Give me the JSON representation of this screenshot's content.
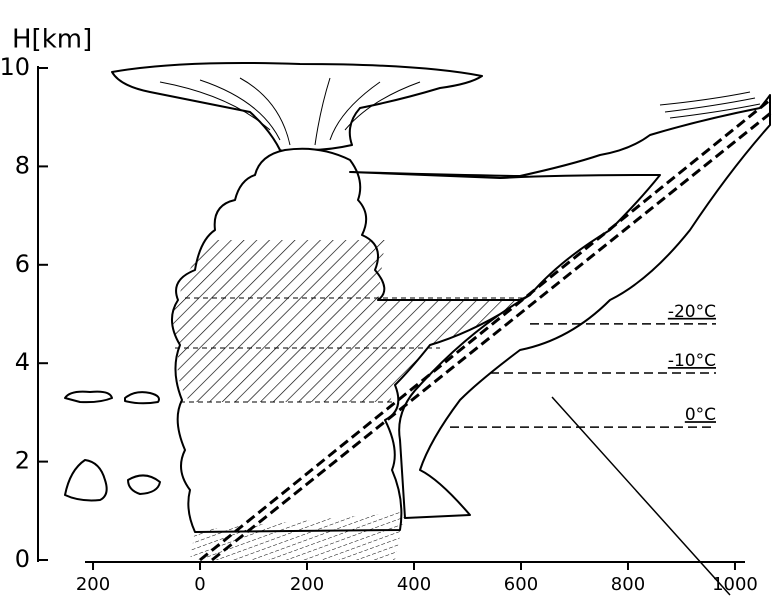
{
  "chart_data": {
    "type": "cloud-section",
    "y_label": "H[km]",
    "xlim": [
      -215,
      1015
    ],
    "ylim": [
      0,
      10
    ],
    "xticks": [
      {
        "value": -200,
        "label": "200"
      },
      0,
      200,
      400,
      600,
      800,
      1000
    ],
    "yticks": [
      0,
      2,
      4,
      6,
      8,
      10
    ],
    "isotherms": [
      {
        "label": "-20°C",
        "height": 4.8
      },
      {
        "label": "-10°C",
        "height": 3.8
      },
      {
        "label": "0°C",
        "height": 2.7
      }
    ]
  }
}
